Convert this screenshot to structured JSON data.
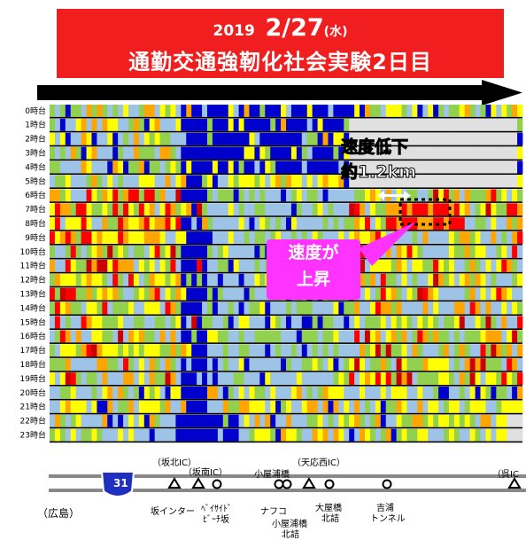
{
  "banner": {
    "year": "2019",
    "date": "2/27",
    "weekday": "(水)",
    "title": "通勤交通強靭化社会実験2日目"
  },
  "chart_data": {
    "type": "heatmap",
    "title": "通勤交通強靭化社会実験2日目",
    "row_labels": [
      "0時台",
      "1時台",
      "2時台",
      "3時台",
      "4時台",
      "5時台",
      "6時台",
      "7時台",
      "8時台",
      "9時台",
      "10時台",
      "11時台",
      "12時台",
      "13時台",
      "14時台",
      "15時台",
      "16時台",
      "17時台",
      "18時台",
      "19時台",
      "20時台",
      "21時台",
      "22時台",
      "23時台"
    ],
    "direction": "arrow pointing right (広島 → 呉IC)",
    "colors": {
      "very_slow": "#cc0000",
      "slow": "#ff0000",
      "medium_slow": "#ffa500",
      "medium": "#ffff00",
      "fair": "#92d050",
      "fast": "#9dc3e6",
      "very_fast": "#0000cc",
      "no_data": "#e0e0e0"
    },
    "annotations": [
      {
        "text": "速度低下",
        "text2": "約1.2km"
      },
      {
        "text": "速度が",
        "text2": "上昇"
      }
    ]
  },
  "route": {
    "shield": "31",
    "start": "（広島）",
    "ic_labels": [
      "（坂北IC）",
      "（坂南IC）",
      "小屋浦橋",
      "（天応西IC）",
      "（呉IC"
    ],
    "bottom_labels": [
      "坂インター",
      "ﾍﾞｲｻｲﾄﾞ",
      "ﾋﾞｰﾁ坂",
      "ナフコ",
      "小屋浦橋",
      "北詰",
      "大屋橋",
      "北詰",
      "吉浦",
      "トンネル"
    ]
  }
}
